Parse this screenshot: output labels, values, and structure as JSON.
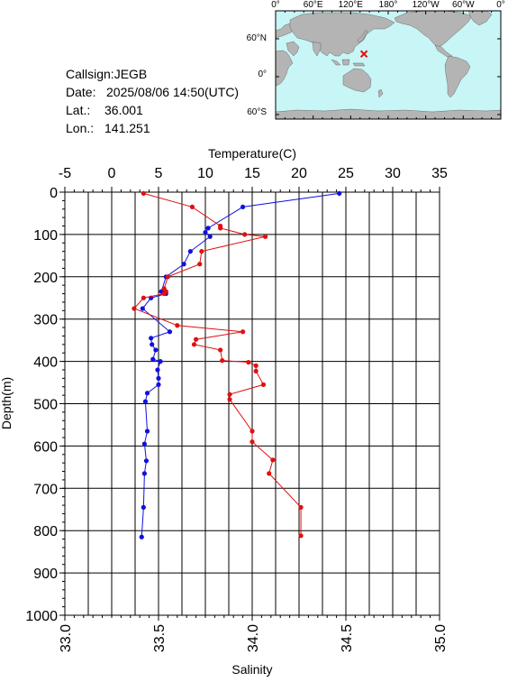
{
  "meta": {
    "callsign": "Callsign:JEGB",
    "date_label": "Date:",
    "date_value": "2025/08/06 14:50(UTC)",
    "lat_label": "Lat.:",
    "lat_value": "36.001",
    "lon_label": "Lon.:",
    "lon_value": "141.251"
  },
  "map": {
    "top_ticks": [
      "0°",
      "60°E",
      "120°E",
      "180°",
      "120°W",
      "60°W",
      "0°"
    ],
    "left_ticks": [
      "60°N",
      "0°",
      "60°S"
    ],
    "ocean_color": "#c8f5f5",
    "land_color": "#b4b4b4",
    "marker_color": "#e01010",
    "marker_lon": 141.251,
    "marker_lat": 36.001
  },
  "chart_data": {
    "type": "line",
    "title": "",
    "xlabel_top": "Temperature(C)",
    "xlabel_bottom": "Salinity",
    "ylabel": "Depth(m)",
    "temperature_ticks": [
      "-5",
      "0",
      "5",
      "10",
      "15",
      "20",
      "25",
      "30",
      "35"
    ],
    "temperature_range": [
      -5,
      35
    ],
    "salinity_ticks": [
      "33.0",
      "33.5",
      "34.0",
      "34.5",
      "35.0"
    ],
    "salinity_range": [
      33.0,
      35.0
    ],
    "depth_ticks": [
      "0",
      "100",
      "200",
      "300",
      "400",
      "500",
      "600",
      "700",
      "800",
      "900",
      "1000"
    ],
    "depth_range": [
      0,
      1000
    ],
    "grid": true,
    "series": [
      {
        "name": "Temperature",
        "color": "#1010e0",
        "points": [
          [
            24.3,
            3
          ],
          [
            14.0,
            35
          ],
          [
            10.3,
            85
          ],
          [
            10.0,
            95
          ],
          [
            10.5,
            105
          ],
          [
            8.4,
            140
          ],
          [
            7.7,
            170
          ],
          [
            5.8,
            200
          ],
          [
            5.3,
            235
          ],
          [
            5.8,
            240
          ],
          [
            4.2,
            250
          ],
          [
            3.3,
            275
          ],
          [
            6.2,
            330
          ],
          [
            4.2,
            345
          ],
          [
            4.3,
            360
          ],
          [
            4.7,
            373
          ],
          [
            4.4,
            395
          ],
          [
            5.2,
            400
          ],
          [
            4.9,
            420
          ],
          [
            5.0,
            440
          ],
          [
            5.0,
            455
          ],
          [
            3.8,
            475
          ],
          [
            3.6,
            495
          ],
          [
            3.8,
            565
          ],
          [
            3.5,
            595
          ],
          [
            3.7,
            635
          ],
          [
            3.5,
            665
          ],
          [
            3.4,
            745
          ],
          [
            3.2,
            815
          ]
        ]
      },
      {
        "name": "Salinity",
        "color": "#e01010",
        "points": [
          [
            33.42,
            3
          ],
          [
            33.68,
            35
          ],
          [
            33.83,
            80
          ],
          [
            33.83,
            85
          ],
          [
            33.96,
            100
          ],
          [
            34.07,
            105
          ],
          [
            33.73,
            140
          ],
          [
            33.72,
            170
          ],
          [
            33.55,
            200
          ],
          [
            33.53,
            228
          ],
          [
            33.54,
            235
          ],
          [
            33.53,
            240
          ],
          [
            33.42,
            250
          ],
          [
            33.37,
            275
          ],
          [
            33.6,
            315
          ],
          [
            33.95,
            330
          ],
          [
            33.7,
            348
          ],
          [
            33.69,
            360
          ],
          [
            33.83,
            373
          ],
          [
            33.84,
            398
          ],
          [
            33.98,
            402
          ],
          [
            34.02,
            410
          ],
          [
            34.02,
            423
          ],
          [
            34.06,
            455
          ],
          [
            33.88,
            478
          ],
          [
            33.88,
            490
          ],
          [
            34.0,
            565
          ],
          [
            34.0,
            590
          ],
          [
            34.11,
            633
          ],
          [
            34.09,
            665
          ],
          [
            34.26,
            745
          ],
          [
            34.26,
            812
          ]
        ]
      }
    ]
  }
}
